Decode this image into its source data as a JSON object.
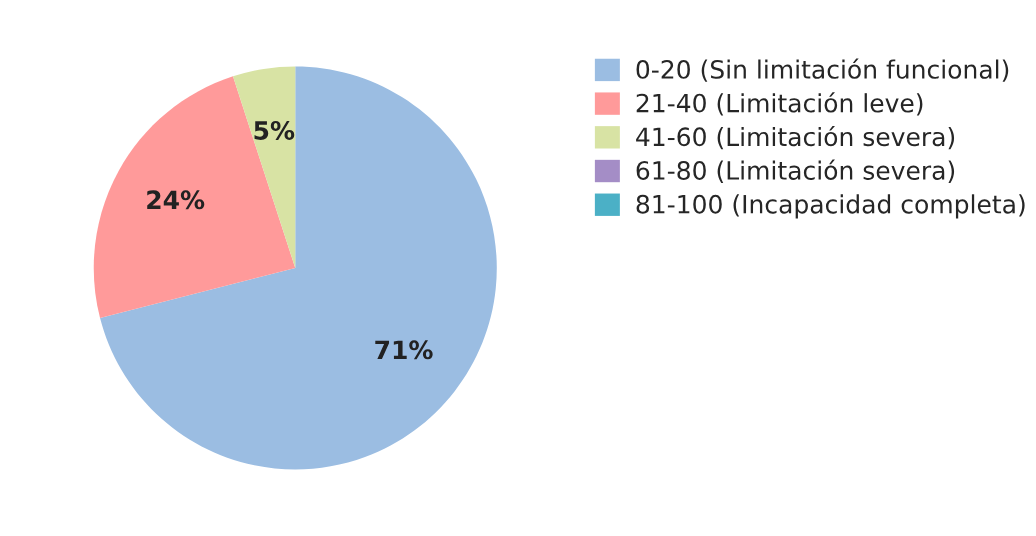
{
  "chart_data": {
    "type": "pie",
    "categories": [
      "0-20 (Sin limitación funcional)",
      "21-40 (Limitación leve)",
      "41-60 (Limitación severa)",
      "61-80 (Limitación severa)",
      "81-100 (Incapacidad completa)"
    ],
    "values": [
      71,
      24,
      5,
      0,
      0
    ],
    "value_labels": [
      "71%",
      "24%",
      "5%",
      null,
      null
    ],
    "colors": [
      "#9bbde2",
      "#ff9a9a",
      "#d8e3a4",
      "#a48dc6",
      "#4bb0c6"
    ],
    "legend": "right"
  }
}
